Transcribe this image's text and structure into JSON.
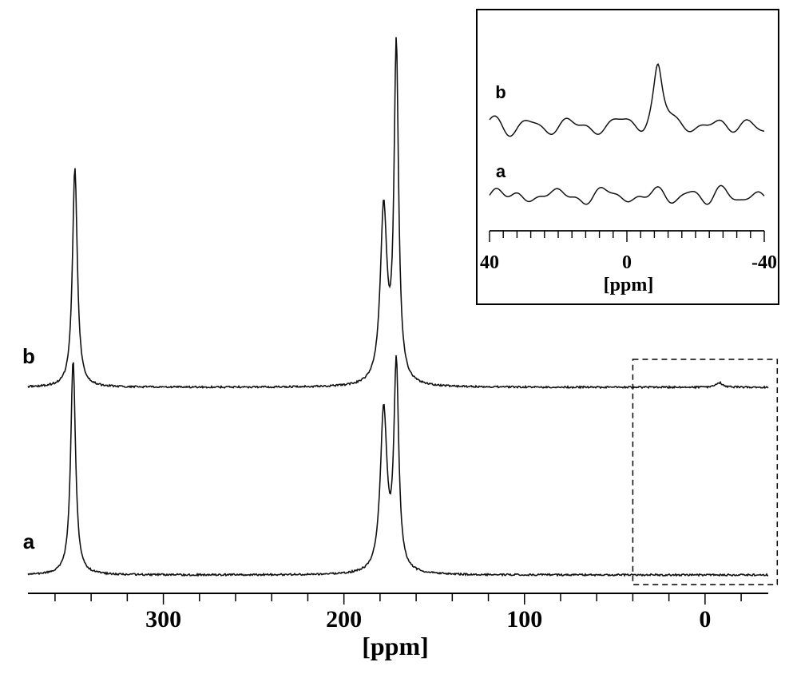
{
  "chart_data": [
    {
      "type": "line",
      "xlabel": "[ppm]",
      "ylabel": "",
      "x_reversed": true,
      "xlim": [
        375,
        -35
      ],
      "x_ticks_major": [
        300,
        200,
        100,
        0
      ],
      "x_tick_labels": [
        "300",
        "200",
        "100",
        "0"
      ],
      "x_ticks_minor_step": 20,
      "grid": false,
      "legend": "none",
      "series": [
        {
          "name": "a",
          "peaks": [
            {
              "x": 350,
              "height": 0.93,
              "width": 1.6
            },
            {
              "x": 178,
              "height": 0.7,
              "width": 2.2
            },
            {
              "x": 171,
              "height": 0.89,
              "width": 1.6
            }
          ]
        },
        {
          "name": "b",
          "peaks": [
            {
              "x": 349,
              "height": 0.95,
              "width": 1.6
            },
            {
              "x": 178,
              "height": 0.75,
              "width": 2.2
            },
            {
              "x": 171,
              "height": 1.45,
              "width": 1.5
            },
            {
              "x": -8,
              "height": 0.02,
              "width": 2.0
            }
          ]
        }
      ],
      "highlight_region": {
        "x_range": [
          40,
          -40
        ],
        "style": "dashed",
        "label": "zoomed in inset"
      }
    },
    {
      "type": "line",
      "role": "inset",
      "xlabel": "[ppm]",
      "ylabel": "",
      "x_reversed": true,
      "xlim": [
        40,
        -40
      ],
      "x_ticks_major": [
        40,
        0,
        -40
      ],
      "x_tick_labels": [
        "40",
        "0",
        "-40"
      ],
      "x_ticks_minor_step": 4,
      "grid": false,
      "legend": "none",
      "series": [
        {
          "name": "a",
          "peaks": []
        },
        {
          "name": "b",
          "peaks": [
            {
              "x": -9,
              "height": 1.0,
              "width": 1.6
            }
          ]
        }
      ]
    }
  ]
}
